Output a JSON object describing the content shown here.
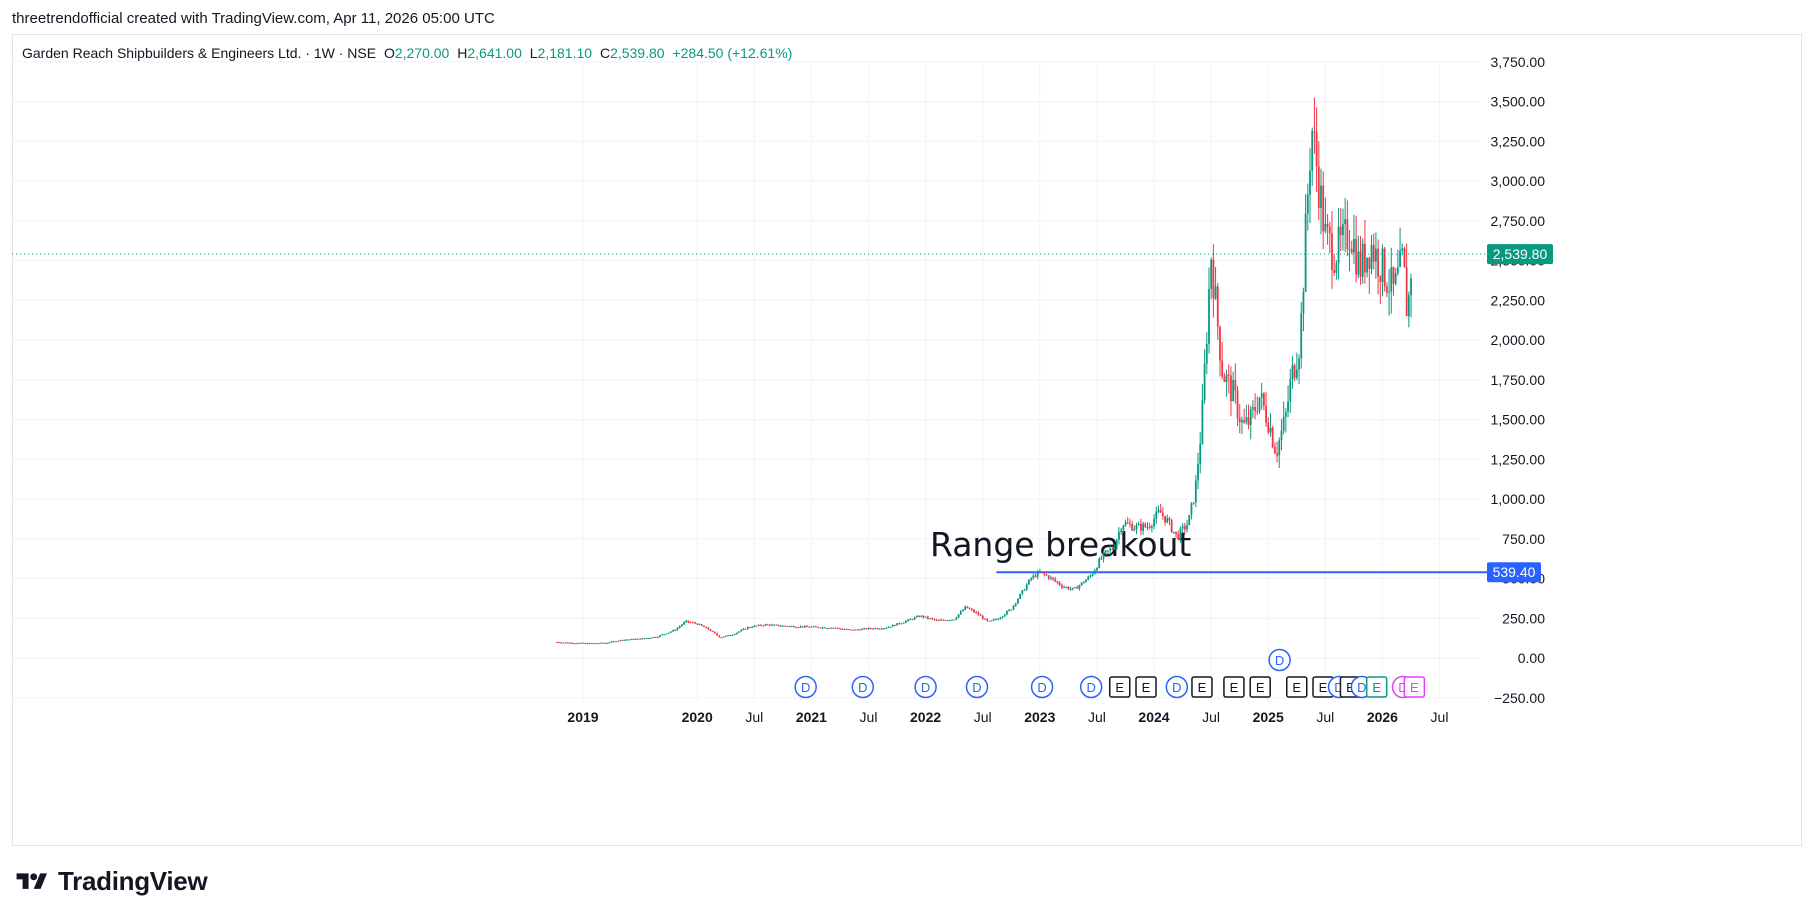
{
  "caption": "threetrendofficial created with TradingView.com, Apr 11, 2026 05:00 UTC",
  "legend": {
    "symbol": "Garden Reach Shipbuilders & Engineers Ltd. · 1W · NSE",
    "o_label": "O",
    "o": "2,270.00",
    "h_label": "H",
    "h": "2,641.00",
    "l_label": "L",
    "l": "2,181.10",
    "c_label": "C",
    "c": "2,539.80",
    "change": "+284.50 (+12.61%)"
  },
  "annotation": "Range breakout",
  "brand": {
    "name": "TradingView",
    "logo_icon": "tradingview-logo-icon"
  },
  "colors": {
    "up": "#089981",
    "down": "#f23645",
    "line": "#2962ff",
    "event_blue": "#2962ff",
    "event_grey": "#131722",
    "event_green": "#089981",
    "event_magenta": "#e040fb"
  },
  "chart_data": {
    "type": "candlestick",
    "title": "Garden Reach Shipbuilders & Engineers Ltd.",
    "interval": "1W",
    "exchange": "NSE",
    "y_range": [
      -250,
      3900
    ],
    "x_range": [
      2018.67,
      2026.5
    ],
    "y_ticks": [
      "3,750.00",
      "3,500.00",
      "3,250.00",
      "3,000.00",
      "2,750.00",
      "2,500.00",
      "2,250.00",
      "2,000.00",
      "1,750.00",
      "1,500.00",
      "1,250.00",
      "1,000.00",
      "750.00",
      "500.00",
      "250.00",
      "0.00",
      "−250.00"
    ],
    "y_tick_values": [
      3750,
      3500,
      3250,
      3000,
      2750,
      2500,
      2250,
      2000,
      1750,
      1500,
      1250,
      1000,
      750,
      500,
      250,
      0,
      -250
    ],
    "x_ticks": [
      {
        "label": "2019",
        "t": 2019.0,
        "bold": true
      },
      {
        "label": "2020",
        "t": 2020.0,
        "bold": true
      },
      {
        "label": "Jul",
        "t": 2020.5,
        "bold": false
      },
      {
        "label": "2021",
        "t": 2021.0,
        "bold": true
      },
      {
        "label": "Jul",
        "t": 2021.5,
        "bold": false
      },
      {
        "label": "2022",
        "t": 2022.0,
        "bold": true
      },
      {
        "label": "Jul",
        "t": 2022.5,
        "bold": false
      },
      {
        "label": "2023",
        "t": 2023.0,
        "bold": true
      },
      {
        "label": "Jul",
        "t": 2023.5,
        "bold": false
      },
      {
        "label": "2024",
        "t": 2024.0,
        "bold": true
      },
      {
        "label": "Jul",
        "t": 2024.5,
        "bold": false
      },
      {
        "label": "2025",
        "t": 2025.0,
        "bold": true
      },
      {
        "label": "Jul",
        "t": 2025.5,
        "bold": false
      },
      {
        "label": "2026",
        "t": 2026.0,
        "bold": true
      },
      {
        "label": "Jul",
        "t": 2026.5,
        "bold": false
      }
    ],
    "current_price": 2539.8,
    "current_price_label": "2,539.80",
    "horizontal_line": {
      "value": 539.4,
      "label": "539.40",
      "from_t": 2022.62
    },
    "close_path": [
      [
        2018.77,
        100
      ],
      [
        2018.9,
        95
      ],
      [
        2019.05,
        92
      ],
      [
        2019.2,
        95
      ],
      [
        2019.35,
        115
      ],
      [
        2019.5,
        120
      ],
      [
        2019.65,
        135
      ],
      [
        2019.8,
        175
      ],
      [
        2019.9,
        230
      ],
      [
        2020.0,
        215
      ],
      [
        2020.1,
        180
      ],
      [
        2020.2,
        130
      ],
      [
        2020.3,
        145
      ],
      [
        2020.45,
        195
      ],
      [
        2020.6,
        210
      ],
      [
        2020.8,
        200
      ],
      [
        2021.0,
        195
      ],
      [
        2021.2,
        190
      ],
      [
        2021.35,
        175
      ],
      [
        2021.5,
        185
      ],
      [
        2021.65,
        190
      ],
      [
        2021.8,
        225
      ],
      [
        2021.95,
        265
      ],
      [
        2022.1,
        235
      ],
      [
        2022.25,
        245
      ],
      [
        2022.35,
        320
      ],
      [
        2022.45,
        280
      ],
      [
        2022.55,
        225
      ],
      [
        2022.65,
        255
      ],
      [
        2022.75,
        310
      ],
      [
        2022.85,
        420
      ],
      [
        2022.92,
        500
      ],
      [
        2023.0,
        540
      ],
      [
        2023.1,
        500
      ],
      [
        2023.2,
        450
      ],
      [
        2023.3,
        430
      ],
      [
        2023.45,
        520
      ],
      [
        2023.55,
        640
      ],
      [
        2023.65,
        700
      ],
      [
        2023.72,
        850
      ],
      [
        2023.85,
        820
      ],
      [
        2023.95,
        830
      ],
      [
        2024.05,
        920
      ],
      [
        2024.12,
        860
      ],
      [
        2024.2,
        760
      ],
      [
        2024.3,
        850
      ],
      [
        2024.36,
        1050
      ],
      [
        2024.42,
        1500
      ],
      [
        2024.5,
        2550
      ],
      [
        2024.55,
        2150
      ],
      [
        2024.6,
        1800
      ],
      [
        2024.7,
        1650
      ],
      [
        2024.78,
        1450
      ],
      [
        2024.85,
        1500
      ],
      [
        2024.92,
        1650
      ],
      [
        2025.0,
        1500
      ],
      [
        2025.07,
        1300
      ],
      [
        2025.15,
        1500
      ],
      [
        2025.2,
        1750
      ],
      [
        2025.28,
        2000
      ],
      [
        2025.33,
        2700
      ],
      [
        2025.38,
        3350
      ],
      [
        2025.45,
        2950
      ],
      [
        2025.5,
        2650
      ],
      [
        2025.58,
        2550
      ],
      [
        2025.65,
        2600
      ],
      [
        2025.72,
        2700
      ],
      [
        2025.8,
        2450
      ],
      [
        2025.9,
        2600
      ],
      [
        2026.0,
        2450
      ],
      [
        2026.1,
        2300
      ],
      [
        2026.18,
        2500
      ],
      [
        2026.22,
        2150
      ],
      [
        2026.26,
        2539.8
      ]
    ],
    "events": [
      {
        "label": "D",
        "t": 2020.95,
        "kind": "dividend",
        "row": 0
      },
      {
        "label": "D",
        "t": 2021.45,
        "kind": "dividend",
        "row": 0
      },
      {
        "label": "D",
        "t": 2022.0,
        "kind": "dividend",
        "row": 0
      },
      {
        "label": "D",
        "t": 2022.45,
        "kind": "dividend",
        "row": 0
      },
      {
        "label": "D",
        "t": 2023.02,
        "kind": "dividend",
        "row": 0
      },
      {
        "label": "D",
        "t": 2023.45,
        "kind": "dividend",
        "row": 0
      },
      {
        "label": "E",
        "t": 2023.7,
        "kind": "earnings",
        "row": 0
      },
      {
        "label": "E",
        "t": 2023.93,
        "kind": "earnings",
        "row": 0
      },
      {
        "label": "D",
        "t": 2024.2,
        "kind": "dividend",
        "row": 0
      },
      {
        "label": "E",
        "t": 2024.42,
        "kind": "earnings",
        "row": 0
      },
      {
        "label": "E",
        "t": 2024.7,
        "kind": "earnings",
        "row": 0
      },
      {
        "label": "E",
        "t": 2024.93,
        "kind": "earnings",
        "row": 0
      },
      {
        "label": "D",
        "t": 2025.1,
        "kind": "dividend",
        "row": 1
      },
      {
        "label": "E",
        "t": 2025.25,
        "kind": "earnings",
        "row": 0
      },
      {
        "label": "E",
        "t": 2025.48,
        "kind": "earnings",
        "row": 0
      },
      {
        "label": "D",
        "t": 2025.62,
        "kind": "dividend",
        "row": 0
      },
      {
        "label": "E",
        "t": 2025.72,
        "kind": "earnings",
        "row": 0
      },
      {
        "label": "D",
        "t": 2025.82,
        "kind": "dividend",
        "row": 0
      },
      {
        "label": "E",
        "t": 2025.95,
        "kind": "earnings_green",
        "row": 0
      },
      {
        "label": "D",
        "t": 2026.18,
        "kind": "dividend_magenta",
        "row": 0
      },
      {
        "label": "E",
        "t": 2026.28,
        "kind": "earnings_magenta",
        "row": 0
      }
    ]
  }
}
